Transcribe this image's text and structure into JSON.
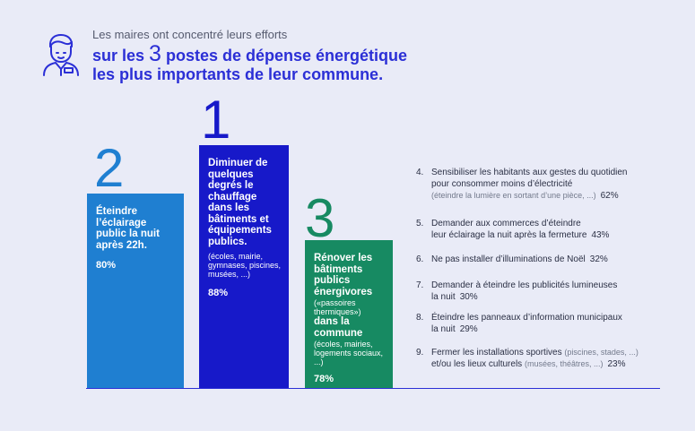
{
  "header": {
    "intro": "Les maires ont concentré leurs efforts",
    "headline_line1_before": "sur les ",
    "headline_number": "3",
    "headline_line1_after": " postes de dépense énergétique",
    "headline_line2": "les plus importants de leur commune."
  },
  "colors": {
    "background": "#e9ebf7",
    "accent": "#2b2fd6",
    "rank2_bar": "#1f7fd1",
    "rank1_bar": "#1719c9",
    "rank3_bar": "#178a62"
  },
  "icons": {
    "person": "person-avatar-icon"
  },
  "chart_data": {
    "type": "bar",
    "ylim": [
      0,
      100
    ],
    "bars": [
      {
        "rank": "2",
        "title": "Éteindre l’éclairage public la nuit après 22h.",
        "note": "",
        "value": 80,
        "value_label": "80%",
        "color": "#1f7fd1"
      },
      {
        "rank": "1",
        "title": "Diminuer de quelques degrés le chauffage dans les bâtiments et équipements publics.",
        "note": "(écoles, mairie, gymnases, piscines, musées, ...)",
        "value": 88,
        "value_label": "88%",
        "color": "#1719c9"
      },
      {
        "rank": "3",
        "title": "Rénover les bâtiments publics énergivores",
        "note": "(«passoires thermiques»)",
        "title2": "dans la commune",
        "note2": "(écoles, mairies, logements sociaux, ...)",
        "value": 78,
        "value_label": "78%",
        "color": "#178a62"
      }
    ],
    "others": [
      {
        "index": "4.",
        "text": "Sensibiliser les habitants aux gestes du quotidien",
        "text2": "pour consommer moins d’électricité",
        "sub": "(éteindre la lumière en sortant d’une pièce, ...)",
        "value": 62,
        "value_label": "62%"
      },
      {
        "index": "5.",
        "text": "Demander aux commerces d’éteindre",
        "text2": "leur éclairage la nuit après la fermeture",
        "value": 43,
        "value_label": "43%"
      },
      {
        "index": "6.",
        "text": "Ne pas installer d’illuminations de Noël",
        "value": 32,
        "value_label": "32%"
      },
      {
        "index": "7.",
        "text": "Demander à éteindre les publicités lumineuses",
        "text2": "la nuit",
        "value": 30,
        "value_label": "30%"
      },
      {
        "index": "8.",
        "text": "Éteindre les panneaux d’information municipaux",
        "text2": "la nuit",
        "value": 29,
        "value_label": "29%"
      },
      {
        "index": "9.",
        "text": "Fermer les installations sportives",
        "sub_inline": "(piscines, stades, ...)",
        "text2": "et/ou les lieux culturels",
        "sub2": "(musées, théâtres, ...)",
        "value": 23,
        "value_label": "23%"
      }
    ]
  }
}
